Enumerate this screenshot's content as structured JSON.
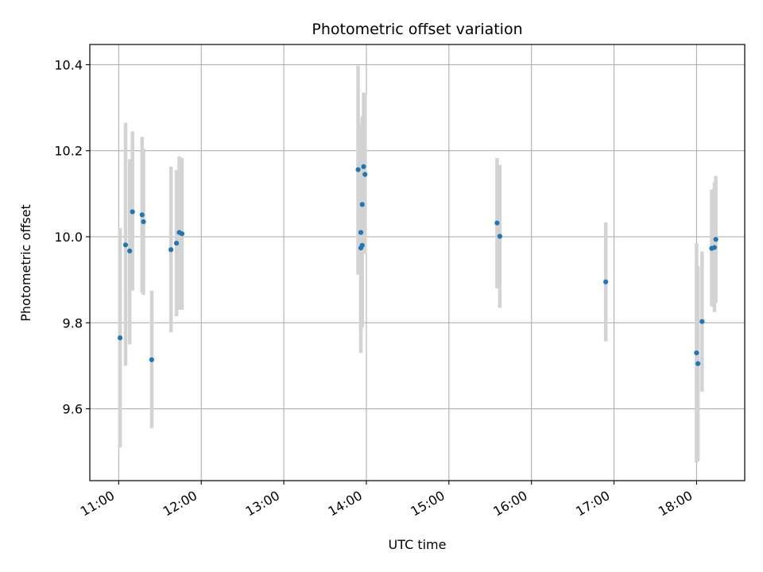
{
  "chart_data": {
    "type": "scatter",
    "title": "Photometric offset variation",
    "xlabel": "UTC time",
    "ylabel": "Photometric offset",
    "x_axis": "time",
    "xlim": [
      "10:39",
      "18:35"
    ],
    "ylim": [
      9.433,
      10.447
    ],
    "xticks": [
      "11:00",
      "12:00",
      "13:00",
      "14:00",
      "15:00",
      "16:00",
      "17:00",
      "18:00"
    ],
    "yticks": [
      9.6,
      9.8,
      10.0,
      10.2,
      10.4
    ],
    "ytick_labels": [
      "9.6",
      "9.8",
      "10.0",
      "10.2",
      "10.4"
    ],
    "grid": true,
    "legend": "none",
    "point_color": "#1f77b4",
    "errorbar_color": "#d3d3d3",
    "points": [
      {
        "x": "11:01",
        "y": 9.765,
        "lo": 9.51,
        "hi": 10.02
      },
      {
        "x": "11:05",
        "y": 9.981,
        "lo": 9.7,
        "hi": 10.265
      },
      {
        "x": "11:08",
        "y": 9.967,
        "lo": 9.75,
        "hi": 10.18
      },
      {
        "x": "11:10",
        "y": 10.058,
        "lo": 9.875,
        "hi": 10.245
      },
      {
        "x": "11:17",
        "y": 10.051,
        "lo": 9.87,
        "hi": 10.232
      },
      {
        "x": "11:18",
        "y": 10.035,
        "lo": 9.865,
        "hi": 10.205
      },
      {
        "x": "11:24",
        "y": 9.714,
        "lo": 9.555,
        "hi": 9.875
      },
      {
        "x": "11:38",
        "y": 9.97,
        "lo": 9.778,
        "hi": 10.163
      },
      {
        "x": "11:42",
        "y": 9.985,
        "lo": 9.815,
        "hi": 10.155
      },
      {
        "x": "11:44",
        "y": 10.01,
        "lo": 9.83,
        "hi": 10.187
      },
      {
        "x": "11:46",
        "y": 10.007,
        "lo": 9.83,
        "hi": 10.183
      },
      {
        "x": "13:54",
        "y": 10.156,
        "lo": 9.912,
        "hi": 10.398
      },
      {
        "x": "13:56",
        "y": 9.974,
        "lo": 9.73,
        "hi": 10.262
      },
      {
        "x": "13:56",
        "y": 10.01,
        "lo": 9.78,
        "hi": 10.24
      },
      {
        "x": "13:57",
        "y": 9.98,
        "lo": 9.79,
        "hi": 10.17
      },
      {
        "x": "13:57",
        "y": 10.075,
        "lo": 9.87,
        "hi": 10.28
      },
      {
        "x": "13:58",
        "y": 10.163,
        "lo": 9.985,
        "hi": 10.335
      },
      {
        "x": "13:59",
        "y": 10.145,
        "lo": 9.96,
        "hi": 10.33
      },
      {
        "x": "15:35",
        "y": 10.032,
        "lo": 9.88,
        "hi": 10.183
      },
      {
        "x": "15:37",
        "y": 10.001,
        "lo": 9.835,
        "hi": 10.167
      },
      {
        "x": "16:54",
        "y": 9.895,
        "lo": 9.757,
        "hi": 10.033
      },
      {
        "x": "18:00",
        "y": 9.73,
        "lo": 9.475,
        "hi": 9.985
      },
      {
        "x": "18:01",
        "y": 9.705,
        "lo": 9.478,
        "hi": 9.932
      },
      {
        "x": "18:04",
        "y": 9.803,
        "lo": 9.64,
        "hi": 9.966
      },
      {
        "x": "18:11",
        "y": 9.973,
        "lo": 9.838,
        "hi": 10.11
      },
      {
        "x": "18:13",
        "y": 9.975,
        "lo": 9.825,
        "hi": 10.127
      },
      {
        "x": "18:14",
        "y": 9.994,
        "lo": 9.846,
        "hi": 10.141
      }
    ]
  }
}
